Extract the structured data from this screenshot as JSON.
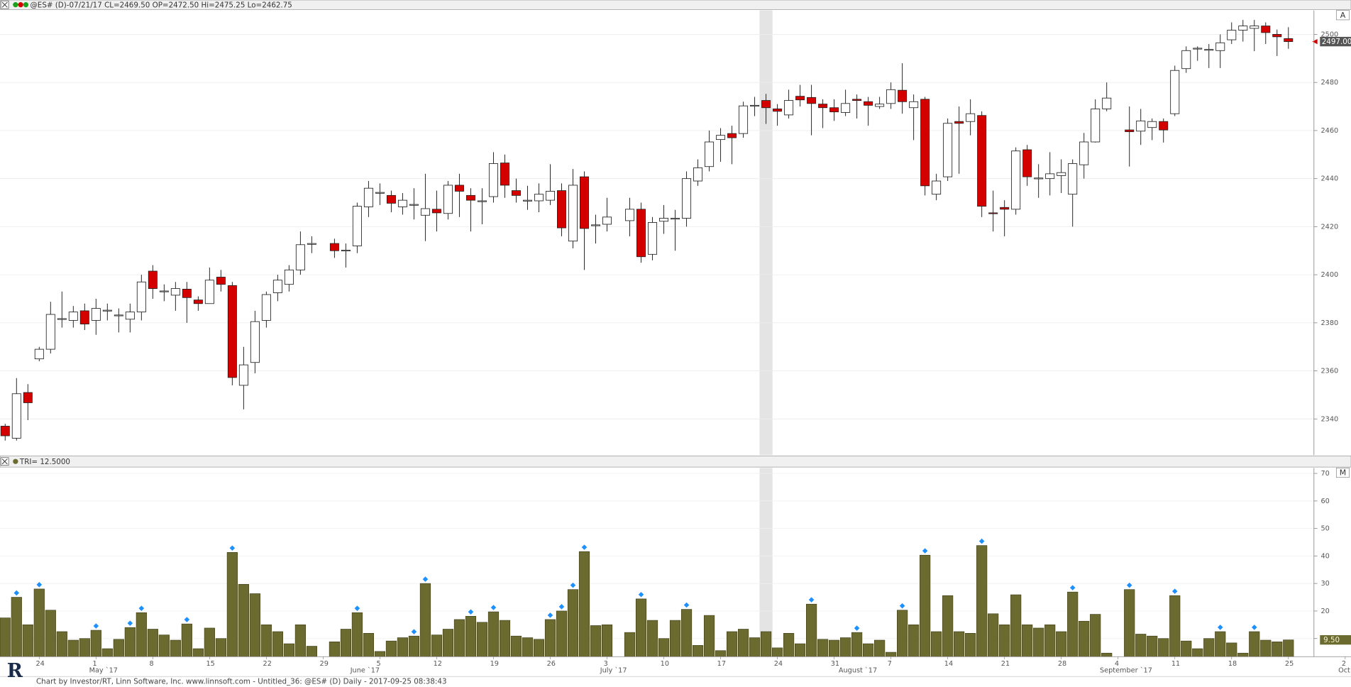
{
  "chart_data": [
    {
      "type": "candlestick",
      "title": "@ES# (D)-07/21/17 CL=2469.50 OP=2472.50 Hi=2475.25 Lo=2462.75",
      "up_color": "#ffffff",
      "down_color": "#d40000",
      "ylim": [
        2325,
        2510
      ],
      "yticks": [
        2340,
        2360,
        2380,
        2400,
        2420,
        2440,
        2460,
        2480,
        2500
      ],
      "grid": true,
      "last_price": {
        "value": 2497,
        "label": "2497.00"
      },
      "open": [
        2337,
        2332,
        2351,
        2365,
        2369,
        2381.5,
        2381,
        2385,
        2381,
        2385,
        2383,
        2381.5,
        2384.5,
        2401.5,
        2393,
        2391.5,
        2394,
        2389.5,
        2388,
        2399,
        2395.5,
        2354,
        2363.5,
        2381,
        2392.5,
        2396,
        2402,
        2412.75,
        null,
        2413,
        2410,
        2412,
        2428.25,
        2434,
        2433,
        2428.25,
        2429,
        2424.75,
        2427.25,
        2425.5,
        2437.25,
        2433,
        2430.5,
        2432.5,
        2446.5,
        2435,
        2430.75,
        2430.75,
        2431,
        2435,
        2414,
        2440.75,
        2420.5,
        2421,
        null,
        2422.5,
        2427.25,
        2408.5,
        2422.25,
        2423.25,
        2423.5,
        2439,
        2445,
        2456.25,
        2458.75,
        2458.75,
        2470.25,
        2472.5,
        2469,
        2466.5,
        2474.25,
        2473.75,
        2471,
        2469.5,
        2467.5,
        2473,
        2472,
        2470,
        2471.25,
        2476.75,
        2469.5,
        2473,
        2433.5,
        2440.75,
        2463.75,
        2463.75,
        2466.25,
        2425.75,
        2428,
        2427.25,
        2452,
        2440,
        2440,
        2441.25,
        2433.5,
        2445.75,
        2455.25,
        2469,
        null,
        2460.25,
        2459.75,
        2461.25,
        2463.75,
        2467,
        2485.75,
        2494,
        2493.5,
        2493.25,
        2497.75,
        2501.75,
        2502.5,
        2503.5,
        2500,
        2498.25,
        null,
        null,
        null,
        null,
        null
      ],
      "high": [
        2338,
        2357,
        2354.5,
        2370,
        2388.75,
        2393,
        2387,
        2388,
        2390,
        2388,
        2386,
        2388,
        2400,
        2404,
        2396,
        2397,
        2397,
        2391,
        2403,
        2402,
        2397,
        2370,
        2385,
        2393,
        2400,
        2404,
        2418,
        2416,
        null,
        2415,
        2413,
        2430,
        2439,
        2438,
        2435,
        2434,
        2436,
        2442,
        2435,
        2439,
        2442,
        2436,
        2436,
        2451,
        2450,
        2440,
        2437,
        2438,
        2446,
        2438,
        2444,
        2443,
        2425,
        2432,
        null,
        2432,
        2430,
        2424,
        2429,
        2427,
        2443,
        2448,
        2460,
        2461,
        2462,
        2472,
        2474,
        2475.25,
        2471,
        2477,
        2479,
        2479,
        2473,
        2473,
        2477,
        2475,
        2474,
        2474,
        2480,
        2488,
        2475,
        2474,
        2442,
        2465,
        2470,
        2473,
        2468,
        2435,
        2431,
        2453,
        2454,
        2446,
        2451,
        2448,
        2448,
        2459,
        2473,
        2480,
        null,
        2470,
        2469,
        2465,
        2465,
        2487,
        2495,
        2495,
        2496,
        2500,
        2505,
        2506,
        2506,
        2505,
        2502,
        2503,
        null,
        null,
        null,
        null,
        null
      ],
      "low": [
        2331,
        2331,
        2339.5,
        2364,
        2367.25,
        2378,
        2378,
        2377,
        2375,
        2381,
        2376,
        2376,
        2381,
        2390,
        2389,
        2385,
        2380,
        2385,
        2388,
        2393,
        2354,
        2344,
        2359,
        2378,
        2389,
        2393,
        2400,
        2409,
        null,
        2407,
        2403,
        2409,
        2424,
        2429,
        2426,
        2425,
        2423,
        2414,
        2418,
        2423,
        2424,
        2418,
        2421,
        2430,
        2432,
        2430,
        2427,
        2426,
        2429,
        2416,
        2411,
        2402,
        2413,
        2418,
        null,
        2416,
        2405,
        2406,
        2417,
        2410,
        2420,
        2437,
        2443,
        2447,
        2446,
        2457,
        2466,
        2462.75,
        2462,
        2465,
        2470,
        2458,
        2461,
        2464,
        2466,
        2465,
        2462,
        2469,
        2469,
        2467,
        2456,
        2433,
        2431,
        2439,
        2442,
        2458,
        2424,
        2418,
        2416,
        2425,
        2437,
        2432,
        2433,
        2434,
        2420,
        2440,
        2455,
        2468,
        null,
        2445,
        2454,
        2456,
        2455,
        2466,
        2484,
        2489,
        2486,
        2486,
        2496,
        2497,
        2493,
        2496,
        2491,
        2494,
        null,
        null,
        null,
        null,
        null
      ],
      "close": [
        2333,
        2350.5,
        2346.75,
        2369,
        2383.5,
        2381.75,
        2384.5,
        2379.5,
        2386,
        2385.25,
        2383.25,
        2384.5,
        2397,
        2394.25,
        2393.25,
        2394.25,
        2390.5,
        2388,
        2397.75,
        2396,
        2357.25,
        2362.5,
        2380.5,
        2391.75,
        2397.75,
        2402,
        2412.5,
        2413,
        null,
        2410,
        2410.25,
        2428.5,
        2436,
        2434.25,
        2429.75,
        2431,
        2429.25,
        2427.5,
        2425.75,
        2437.25,
        2434.75,
        2431,
        2430.75,
        2446.25,
        2437.25,
        2433,
        2431,
        2433.5,
        2434.75,
        2419.5,
        2437.25,
        2419.25,
        2420.75,
        2424,
        null,
        2427.25,
        2407.5,
        2421.75,
        2423.5,
        2423.5,
        2440,
        2444.5,
        2455.25,
        2458,
        2457,
        2470.25,
        2470.5,
        2469.5,
        2468,
        2472.5,
        2472.75,
        2471.25,
        2469.5,
        2467.75,
        2471.25,
        2472.5,
        2470.5,
        2471,
        2477,
        2472,
        2472,
        2437,
        2439,
        2463,
        2463,
        2467,
        2428.5,
        2425.5,
        2427.25,
        2451.5,
        2440.75,
        2440.25,
        2442,
        2442.5,
        2446.25,
        2455.25,
        2469,
        2473.5,
        null,
        2459.5,
        2464,
        2463.75,
        2460.25,
        2485,
        2493.25,
        2494.25,
        2493.75,
        2496.5,
        2501.75,
        2503.5,
        2503.5,
        2500.75,
        2499,
        2497,
        null,
        null,
        null,
        null,
        null
      ]
    },
    {
      "type": "bar",
      "title": "TRI=  12.5000",
      "color": "#6b6b30",
      "marker_color": "#1e8fff",
      "ylim": [
        3.4,
        72
      ],
      "yticks": [
        10,
        20,
        30,
        40,
        50,
        60,
        70
      ],
      "grid": true,
      "last_value": {
        "value": 9.5,
        "label": "9.50"
      },
      "values": [
        17.5,
        25,
        15,
        28,
        20.3,
        12.5,
        9.4,
        10,
        13,
        6.3,
        9.7,
        14,
        19.4,
        13.4,
        11.3,
        9.4,
        15.3,
        6.3,
        13.8,
        10,
        41.3,
        29.7,
        26.3,
        15,
        12.5,
        8.1,
        15,
        7.2,
        null,
        8.8,
        13.4,
        19.4,
        11.9,
        5.3,
        9.1,
        10.3,
        10.9,
        30,
        11.3,
        13.4,
        16.9,
        18.1,
        15.9,
        19.7,
        16.6,
        10.9,
        10.3,
        9.7,
        16.9,
        20,
        27.8,
        41.6,
        14.7,
        15,
        null,
        12.2,
        24.4,
        16.6,
        10,
        16.6,
        20.6,
        7.5,
        18.4,
        5.6,
        12.5,
        13.4,
        10.3,
        12.5,
        6.6,
        11.9,
        8.1,
        22.5,
        9.7,
        9.4,
        10.3,
        12.2,
        8.1,
        9.4,
        5,
        20.3,
        15,
        40.3,
        12.5,
        25.6,
        12.5,
        11.9,
        43.8,
        19,
        15,
        25.9,
        15,
        13.8,
        15,
        12.5,
        26.9,
        16.3,
        18.8,
        4.7,
        null,
        27.8,
        11.6,
        10.9,
        10,
        25.6,
        9.1,
        6.3,
        10,
        12.5,
        8.4,
        4.7,
        12.5,
        9.4,
        8.8,
        9.5,
        null,
        null,
        null,
        null,
        null
      ],
      "marked": [
        false,
        true,
        false,
        true,
        false,
        false,
        false,
        false,
        true,
        false,
        false,
        true,
        true,
        false,
        false,
        false,
        true,
        false,
        false,
        false,
        true,
        false,
        false,
        false,
        false,
        false,
        false,
        false,
        false,
        false,
        false,
        true,
        false,
        false,
        false,
        false,
        true,
        true,
        false,
        false,
        false,
        true,
        false,
        true,
        false,
        false,
        false,
        false,
        true,
        true,
        true,
        true,
        false,
        false,
        false,
        false,
        true,
        false,
        false,
        false,
        true,
        false,
        false,
        false,
        false,
        false,
        false,
        false,
        false,
        false,
        false,
        true,
        false,
        false,
        false,
        true,
        false,
        false,
        false,
        true,
        false,
        true,
        false,
        false,
        false,
        false,
        true,
        false,
        false,
        false,
        false,
        false,
        false,
        false,
        true,
        false,
        false,
        false,
        false,
        true,
        false,
        false,
        false,
        true,
        false,
        false,
        false,
        true,
        false,
        false,
        true,
        false,
        false,
        false,
        false,
        false,
        false,
        false,
        false
      ]
    }
  ],
  "x_axis": {
    "categories": [
      null,
      null,
      null,
      "24",
      null,
      null,
      null,
      null,
      "1",
      null,
      null,
      null,
      null,
      "8",
      null,
      null,
      null,
      null,
      "15",
      null,
      null,
      null,
      null,
      "22",
      null,
      null,
      null,
      null,
      "29",
      null,
      null,
      null,
      null,
      "5",
      null,
      null,
      null,
      null,
      "12",
      null,
      null,
      null,
      null,
      "19",
      null,
      null,
      null,
      null,
      "26",
      null,
      null,
      null,
      null,
      "3",
      null,
      null,
      null,
      null,
      "10",
      null,
      null,
      null,
      null,
      "17",
      null,
      null,
      null,
      null,
      "24",
      null,
      null,
      null,
      null,
      "31",
      null,
      null,
      null,
      null,
      "7",
      null,
      null,
      null,
      null,
      "14",
      null,
      null,
      null,
      null,
      "21",
      null,
      null,
      null,
      null,
      "28",
      null,
      null,
      null,
      null,
      "4",
      null,
      null,
      null,
      null,
      "11",
      null,
      null,
      null,
      null,
      "18",
      null,
      null,
      null,
      null,
      "25",
      null,
      null,
      null,
      null,
      "2"
    ],
    "months": [
      null,
      null,
      null,
      null,
      null,
      null,
      null,
      null,
      "May `17",
      null,
      null,
      null,
      null,
      null,
      null,
      null,
      null,
      null,
      null,
      null,
      null,
      null,
      null,
      null,
      null,
      null,
      null,
      null,
      null,
      null,
      null,
      "June `17",
      null,
      null,
      null,
      null,
      null,
      null,
      null,
      null,
      null,
      null,
      null,
      null,
      null,
      null,
      null,
      null,
      null,
      null,
      null,
      null,
      null,
      "July `17",
      null,
      null,
      null,
      null,
      null,
      null,
      null,
      null,
      null,
      null,
      null,
      null,
      null,
      null,
      null,
      null,
      null,
      null,
      null,
      null,
      "August `17",
      null,
      null,
      null,
      null,
      null,
      null,
      null,
      null,
      null,
      null,
      null,
      null,
      null,
      null,
      null,
      null,
      null,
      null,
      null,
      null,
      null,
      null,
      "September `17",
      null,
      null,
      null,
      null,
      null,
      null,
      null,
      null,
      null,
      null,
      null,
      null,
      null,
      null,
      null,
      null,
      null,
      null,
      null,
      null,
      "Oct"
    ]
  },
  "panel_labels": [
    "A",
    "M"
  ],
  "logo": "R",
  "footer": "Chart by Investor/RT, Linn Software, Inc. www.linnsoft.com - Untitled_36: @ES# (D) Daily - 2017-09-25 08:38:43"
}
